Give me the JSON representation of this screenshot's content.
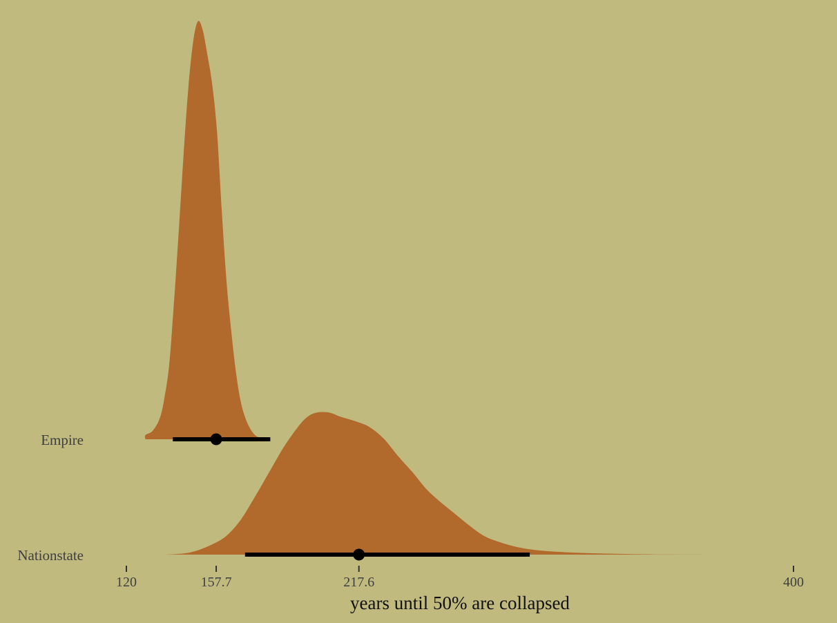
{
  "chart_data": {
    "type": "halfeye",
    "xlabel": "years until 50% are collapsed",
    "ylabel": "",
    "xlim": [
      120,
      400
    ],
    "x_ticks": [
      {
        "value": 120,
        "label": "120"
      },
      {
        "value": 157.7,
        "label": "157.7"
      },
      {
        "value": 217.6,
        "label": "217.6"
      },
      {
        "value": 400,
        "label": "400"
      }
    ],
    "grid": false,
    "legend": "none",
    "colors": {
      "background": "#C0BA7E",
      "density": "#B2692C",
      "interval": "#000000",
      "tick_text": "#3f3f3f",
      "title_text": "#111111"
    },
    "series": [
      {
        "name": "Empire",
        "point": 157.7,
        "interval": [
          139.5,
          180.4
        ],
        "density": [
          [
            128,
            0.0
          ],
          [
            128,
            0.01
          ],
          [
            131,
            0.02
          ],
          [
            134,
            0.05
          ],
          [
            136,
            0.1
          ],
          [
            138,
            0.18
          ],
          [
            140,
            0.33
          ],
          [
            142,
            0.5
          ],
          [
            144,
            0.68
          ],
          [
            146,
            0.84
          ],
          [
            148,
            0.95
          ],
          [
            150,
            1.0
          ],
          [
            152,
            0.98
          ],
          [
            154,
            0.92
          ],
          [
            156,
            0.85
          ],
          [
            158,
            0.74
          ],
          [
            160,
            0.55
          ],
          [
            162,
            0.38
          ],
          [
            164,
            0.26
          ],
          [
            166,
            0.16
          ],
          [
            168,
            0.09
          ],
          [
            170,
            0.05
          ],
          [
            172,
            0.025
          ],
          [
            174,
            0.01
          ],
          [
            176,
            0.004
          ],
          [
            178,
            0.001
          ],
          [
            180,
            0.0
          ]
        ]
      },
      {
        "name": "Nationstate",
        "point": 217.6,
        "interval": [
          169.8,
          289.3
        ],
        "density": [
          [
            136,
            0.0
          ],
          [
            140,
            0.003
          ],
          [
            145,
            0.01
          ],
          [
            150,
            0.03
          ],
          [
            156,
            0.07
          ],
          [
            162,
            0.13
          ],
          [
            168,
            0.24
          ],
          [
            174,
            0.4
          ],
          [
            180,
            0.57
          ],
          [
            186,
            0.74
          ],
          [
            192,
            0.88
          ],
          [
            196,
            0.95
          ],
          [
            200,
            0.98
          ],
          [
            205,
            0.98
          ],
          [
            210,
            0.95
          ],
          [
            216,
            0.92
          ],
          [
            222,
            0.88
          ],
          [
            228,
            0.8
          ],
          [
            234,
            0.68
          ],
          [
            240,
            0.57
          ],
          [
            246,
            0.45
          ],
          [
            252,
            0.36
          ],
          [
            258,
            0.28
          ],
          [
            264,
            0.2
          ],
          [
            270,
            0.13
          ],
          [
            276,
            0.09
          ],
          [
            282,
            0.06
          ],
          [
            288,
            0.04
          ],
          [
            296,
            0.025
          ],
          [
            306,
            0.015
          ],
          [
            318,
            0.008
          ],
          [
            332,
            0.004
          ],
          [
            346,
            0.001
          ],
          [
            364,
            0.0
          ]
        ]
      }
    ]
  }
}
